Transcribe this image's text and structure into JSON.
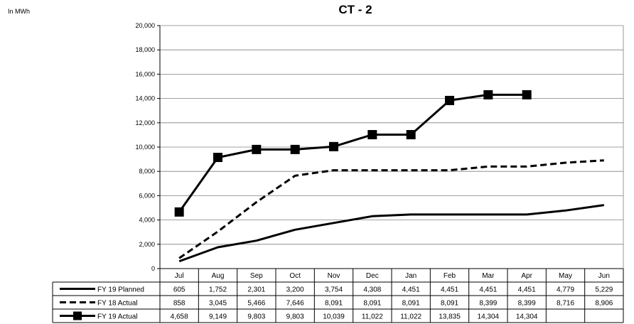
{
  "chart_data": {
    "type": "line",
    "title": "CT - 2",
    "unit_label": "In MWh",
    "categories": [
      "Jul",
      "Aug",
      "Sep",
      "Oct",
      "Nov",
      "Dec",
      "Jan",
      "Feb",
      "Mar",
      "Apr",
      "May",
      "Jun"
    ],
    "ylim": [
      0,
      20000
    ],
    "yticks": [
      "0",
      "2,000",
      "4,000",
      "6,000",
      "8,000",
      "10,000",
      "12,000",
      "14,000",
      "16,000",
      "18,000",
      "20,000"
    ],
    "grid": true,
    "legend": "data-table",
    "series": [
      {
        "name": "FY 19 Planned",
        "style": "solid",
        "color": "#000000",
        "values": [
          605,
          1752,
          2301,
          3200,
          3754,
          4308,
          4451,
          4451,
          4451,
          4451,
          4779,
          5229
        ],
        "labels": [
          "605",
          "1,752",
          "2,301",
          "3,200",
          "3,754",
          "4,308",
          "4,451",
          "4,451",
          "4,451",
          "4,451",
          "4,779",
          "5,229"
        ]
      },
      {
        "name": "FY 18 Actual",
        "style": "dashed",
        "color": "#000000",
        "values": [
          858,
          3045,
          5466,
          7646,
          8091,
          8091,
          8091,
          8091,
          8399,
          8399,
          8716,
          8906
        ],
        "labels": [
          "858",
          "3,045",
          "5,466",
          "7,646",
          "8,091",
          "8,091",
          "8,091",
          "8,091",
          "8,399",
          "8,399",
          "8,716",
          "8,906"
        ]
      },
      {
        "name": "FY 19 Actual",
        "style": "solid-marker",
        "color": "#000000",
        "values": [
          4658,
          9149,
          9803,
          9803,
          10039,
          11022,
          11022,
          13835,
          14304,
          14304,
          null,
          null
        ],
        "labels": [
          "4,658",
          "9,149",
          "9,803",
          "9,803",
          "10,039",
          "11,022",
          "11,022",
          "13,835",
          "14,304",
          "14,304",
          "",
          ""
        ]
      }
    ]
  }
}
